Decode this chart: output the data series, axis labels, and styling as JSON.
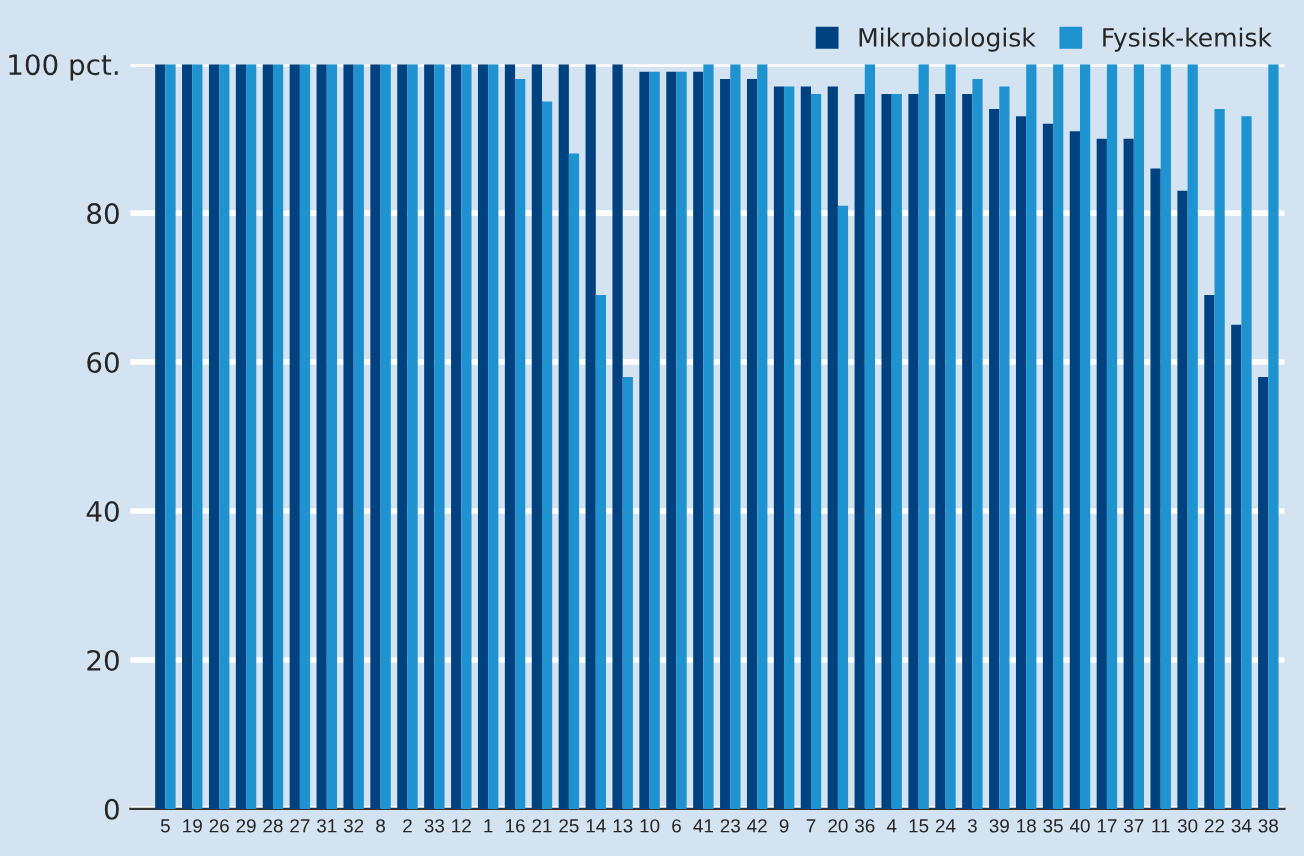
{
  "chart_data": {
    "type": "bar",
    "categories": [
      "5",
      "19",
      "26",
      "29",
      "28",
      "27",
      "31",
      "32",
      "8",
      "2",
      "33",
      "12",
      "1",
      "16",
      "21",
      "25",
      "14",
      "13",
      "10",
      "6",
      "41",
      "23",
      "42",
      "9",
      "7",
      "20",
      "36",
      "4",
      "15",
      "24",
      "3",
      "39",
      "18",
      "35",
      "40",
      "17",
      "37",
      "11",
      "30",
      "22",
      "34",
      "38"
    ],
    "series": [
      {
        "name": "Mikrobiologisk",
        "color": "#00427f",
        "values": [
          100,
          100,
          100,
          100,
          100,
          100,
          100,
          100,
          100,
          100,
          100,
          100,
          100,
          100,
          100,
          100,
          100,
          100,
          99,
          99,
          99,
          98,
          98,
          97,
          97,
          97,
          96,
          96,
          96,
          96,
          96,
          94,
          93,
          92,
          91,
          90,
          90,
          86,
          83,
          69,
          65,
          58
        ]
      },
      {
        "name": "Fysisk-kemisk",
        "color": "#1e93d0",
        "values": [
          100,
          100,
          100,
          100,
          100,
          100,
          100,
          100,
          100,
          100,
          100,
          100,
          100,
          98,
          95,
          88,
          69,
          58,
          99,
          99,
          100,
          100,
          100,
          97,
          96,
          81,
          100,
          96,
          100,
          100,
          98,
          97,
          100,
          100,
          100,
          100,
          100,
          100,
          100,
          94,
          93,
          100
        ]
      }
    ],
    "ylim": [
      0,
      100
    ],
    "yticks": [
      0,
      20,
      40,
      60,
      80,
      {
        "value": 100,
        "label": "100 pct."
      }
    ],
    "grid": "y",
    "legend": "top right"
  }
}
